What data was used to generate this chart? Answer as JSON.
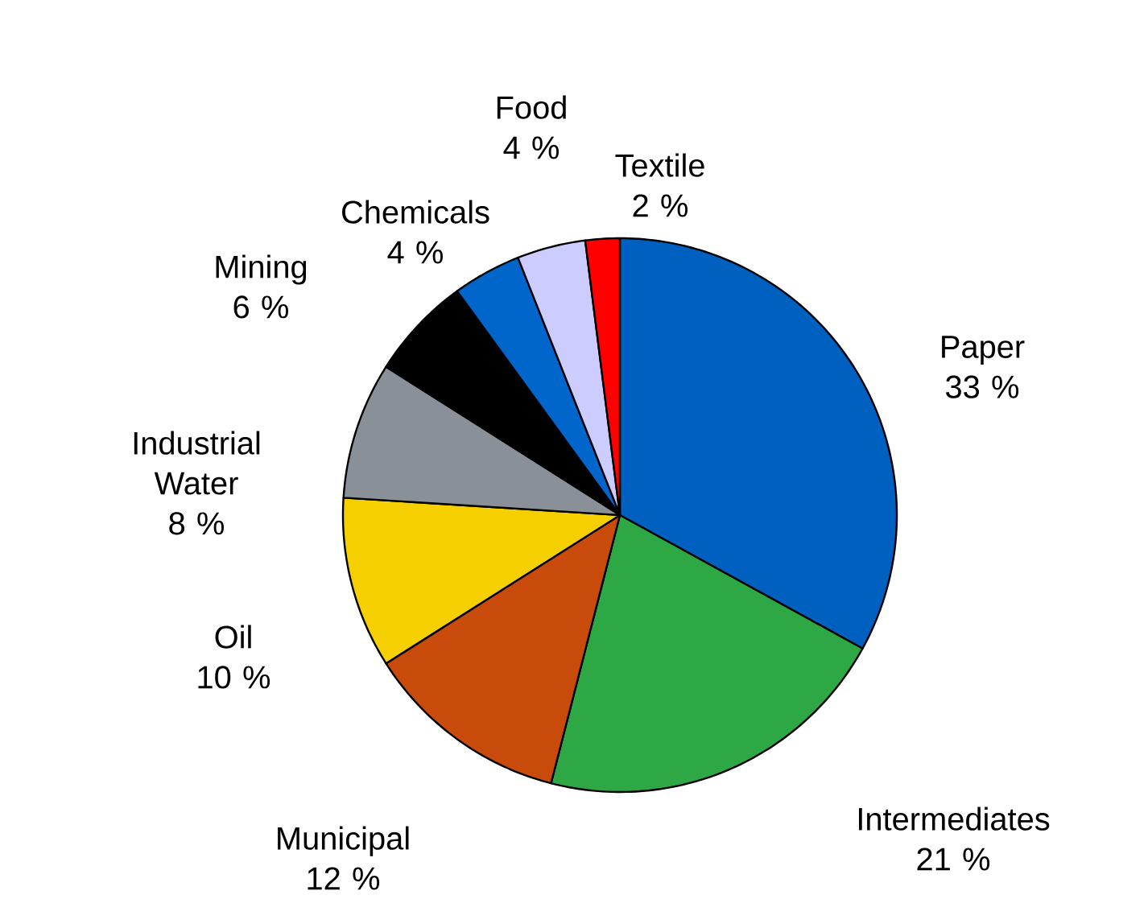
{
  "chart_data": {
    "type": "pie",
    "categories": [
      "Paper",
      "Intermediates",
      "Municipal",
      "Oil",
      "Industrial Water",
      "Mining",
      "Chemicals",
      "Food",
      "Textile"
    ],
    "values": [
      33,
      21,
      12,
      10,
      8,
      6,
      4,
      4,
      2
    ],
    "value_labels": [
      "33 %",
      "21 %",
      "12 %",
      "10 %",
      "8 %",
      "6 %",
      "4 %",
      "4 %",
      "2 %"
    ],
    "colors": [
      "#0060c0",
      "#2ea844",
      "#c84b0c",
      "#f5cf00",
      "#8a9097",
      "#000000",
      "#0066cc",
      "#ccccff",
      "#ff0000"
    ]
  }
}
